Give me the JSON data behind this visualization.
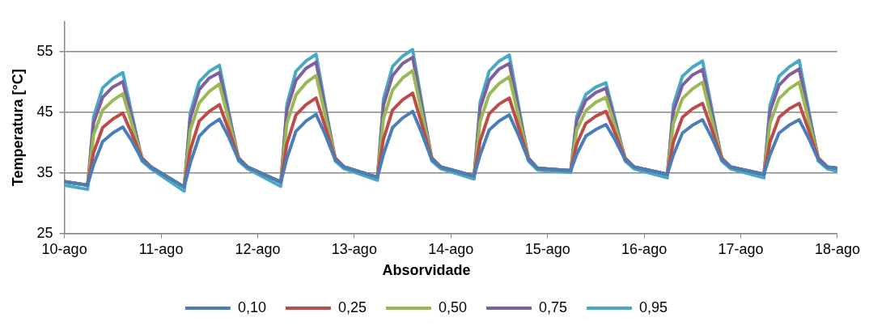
{
  "chart_data": {
    "type": "line",
    "ylabel": "Temperatura [°C]",
    "legend_title": "Absorvidade",
    "x": [
      "--08-10",
      "--08-10T05:45",
      "--08-10T07:15",
      "--08-10T09:30",
      "--08-10T12:00",
      "--08-10T14:30",
      "--08-10T16:45",
      "--08-10T19:15",
      "--08-10T21:30",
      "--08-11T05:45",
      "--08-11T07:15",
      "--08-11T09:30",
      "--08-11T12:00",
      "--08-11T14:30",
      "--08-11T16:45",
      "--08-11T19:15",
      "--08-11T21:30",
      "--08-12T05:45",
      "--08-12T07:15",
      "--08-12T09:30",
      "--08-12T12:00",
      "--08-12T14:30",
      "--08-12T16:45",
      "--08-12T19:15",
      "--08-12T21:30",
      "--08-13T05:45",
      "--08-13T07:15",
      "--08-13T09:30",
      "--08-13T12:00",
      "--08-13T14:30",
      "--08-13T16:45",
      "--08-13T19:15",
      "--08-13T21:30",
      "--08-14T05:45",
      "--08-14T07:15",
      "--08-14T09:30",
      "--08-14T12:00",
      "--08-14T14:30",
      "--08-14T16:45",
      "--08-14T19:15",
      "--08-14T21:30",
      "--08-15T05:45",
      "--08-15T07:15",
      "--08-15T09:30",
      "--08-15T12:00",
      "--08-15T14:30",
      "--08-15T16:45",
      "--08-15T19:15",
      "--08-15T21:30",
      "--08-16T05:45",
      "--08-16T07:15",
      "--08-16T09:30",
      "--08-16T12:00",
      "--08-16T14:30",
      "--08-16T16:45",
      "--08-16T19:15",
      "--08-16T21:30",
      "--08-17T05:45",
      "--08-17T07:15",
      "--08-17T09:30",
      "--08-17T12:00",
      "--08-17T14:30",
      "--08-17T16:45",
      "--08-17T19:15",
      "--08-17T21:30",
      "--08-18"
    ],
    "xlim": [
      "--08-10",
      "--08-18"
    ],
    "xticks": [
      {
        "value": "--08-10",
        "label": "10-ago"
      },
      {
        "value": "--08-11",
        "label": "11-ago"
      },
      {
        "value": "--08-12",
        "label": "12-ago"
      },
      {
        "value": "--08-13",
        "label": "13-ago"
      },
      {
        "value": "--08-14",
        "label": "14-ago"
      },
      {
        "value": "--08-15",
        "label": "15-ago"
      },
      {
        "value": "--08-16",
        "label": "16-ago"
      },
      {
        "value": "--08-17",
        "label": "17-ago"
      },
      {
        "value": "--08-18",
        "label": "18-ago"
      }
    ],
    "ylim": [
      25,
      60
    ],
    "yticks": [
      25,
      35,
      45,
      55
    ],
    "grid": "y",
    "legend": "bottom",
    "marker": "none",
    "line_style": "solid",
    "series": [
      {
        "name": "0,10",
        "color": "#4a7ebb",
        "values": [
          33.6,
          33.0,
          36.4,
          40.2,
          41.6,
          42.6,
          40.3,
          37.2,
          36.0,
          32.7,
          36.6,
          41.1,
          42.8,
          43.9,
          41.0,
          37.2,
          36.0,
          33.5,
          37.4,
          41.9,
          43.6,
          44.7,
          41.4,
          37.2,
          36.0,
          34.3,
          38.1,
          42.5,
          44.1,
          45.2,
          41.6,
          37.2,
          36.0,
          34.5,
          38.0,
          42.1,
          43.6,
          44.6,
          41.3,
          37.2,
          35.8,
          35.4,
          38.1,
          41.1,
          42.2,
          43.0,
          40.5,
          37.2,
          36.0,
          34.8,
          38.0,
          41.6,
          42.9,
          43.8,
          40.9,
          37.2,
          36.0,
          34.8,
          38.0,
          41.6,
          42.9,
          43.8,
          40.9,
          37.2,
          36.0,
          35.8
        ]
      },
      {
        "name": "0,25",
        "color": "#be4b48",
        "values": [
          33.6,
          33.0,
          38.4,
          42.5,
          43.9,
          44.9,
          41.5,
          37.4,
          36.0,
          32.7,
          38.8,
          43.6,
          45.2,
          46.3,
          42.2,
          37.4,
          36.0,
          33.5,
          39.8,
          44.6,
          46.3,
          47.4,
          42.7,
          37.4,
          36.0,
          34.3,
          40.6,
          45.4,
          47.1,
          48.2,
          43.1,
          37.4,
          36.0,
          34.5,
          40.3,
          44.8,
          46.4,
          47.4,
          42.7,
          37.4,
          35.8,
          35.4,
          39.8,
          43.2,
          44.4,
          45.2,
          41.6,
          37.4,
          36.0,
          34.8,
          40.1,
          44.2,
          45.6,
          46.5,
          42.3,
          37.4,
          36.0,
          34.8,
          40.1,
          44.2,
          45.6,
          46.5,
          42.3,
          37.4,
          36.0,
          35.8
        ]
      },
      {
        "name": "0,50",
        "color": "#98b954",
        "values": [
          33.6,
          33.0,
          41.3,
          45.4,
          47.0,
          48.1,
          43.1,
          37.5,
          36.0,
          32.7,
          42.1,
          46.6,
          48.5,
          49.7,
          43.9,
          37.5,
          36.0,
          33.5,
          43.2,
          47.9,
          49.9,
          51.1,
          44.6,
          37.5,
          36.0,
          34.3,
          44.0,
          48.7,
          50.7,
          51.9,
          45.0,
          37.5,
          36.0,
          34.5,
          43.5,
          48.0,
          49.8,
          50.9,
          44.5,
          37.5,
          35.8,
          35.4,
          42.1,
          45.3,
          46.7,
          47.5,
          42.8,
          37.5,
          36.0,
          34.8,
          43.2,
          47.3,
          48.9,
          50.0,
          44.0,
          37.5,
          36.0,
          34.8,
          43.2,
          47.3,
          48.9,
          50.0,
          44.0,
          37.5,
          36.0,
          35.8
        ]
      },
      {
        "name": "0,75",
        "color": "#7d60a0",
        "values": [
          33.6,
          33.0,
          43.3,
          47.5,
          49.2,
          50.1,
          44.1,
          37.5,
          36.0,
          32.7,
          44.0,
          48.8,
          50.7,
          51.6,
          44.8,
          37.5,
          36.0,
          33.5,
          45.4,
          50.3,
          52.3,
          53.3,
          45.7,
          37.5,
          36.0,
          34.3,
          46.2,
          51.1,
          53.1,
          54.1,
          46.1,
          37.5,
          36.0,
          34.5,
          45.7,
          50.3,
          52.2,
          53.1,
          45.6,
          37.5,
          35.8,
          35.4,
          43.6,
          47.0,
          48.3,
          49.0,
          43.5,
          37.5,
          36.0,
          34.8,
          45.2,
          49.5,
          51.2,
          52.1,
          45.1,
          37.5,
          36.0,
          34.8,
          45.2,
          49.5,
          51.2,
          52.2,
          45.1,
          37.5,
          36.0,
          35.8
        ]
      },
      {
        "name": "0,95",
        "color": "#46aac5",
        "values": [
          33.0,
          32.3,
          44.3,
          49.1,
          50.6,
          51.6,
          44.8,
          37.0,
          35.7,
          32.0,
          44.9,
          50.1,
          51.8,
          52.8,
          45.4,
          37.0,
          35.7,
          32.8,
          46.3,
          51.8,
          53.5,
          54.6,
          46.3,
          37.0,
          35.7,
          33.8,
          47.2,
          52.6,
          54.3,
          55.4,
          46.7,
          37.0,
          35.7,
          34.0,
          46.7,
          51.8,
          53.5,
          54.5,
          46.3,
          37.0,
          35.5,
          35.1,
          44.3,
          48.0,
          49.2,
          49.9,
          44.0,
          37.0,
          35.7,
          34.2,
          46.2,
          51.0,
          52.5,
          53.5,
          45.8,
          37.0,
          35.7,
          34.2,
          46.2,
          51.0,
          52.5,
          53.6,
          45.8,
          37.0,
          35.7,
          35.3
        ]
      }
    ]
  }
}
